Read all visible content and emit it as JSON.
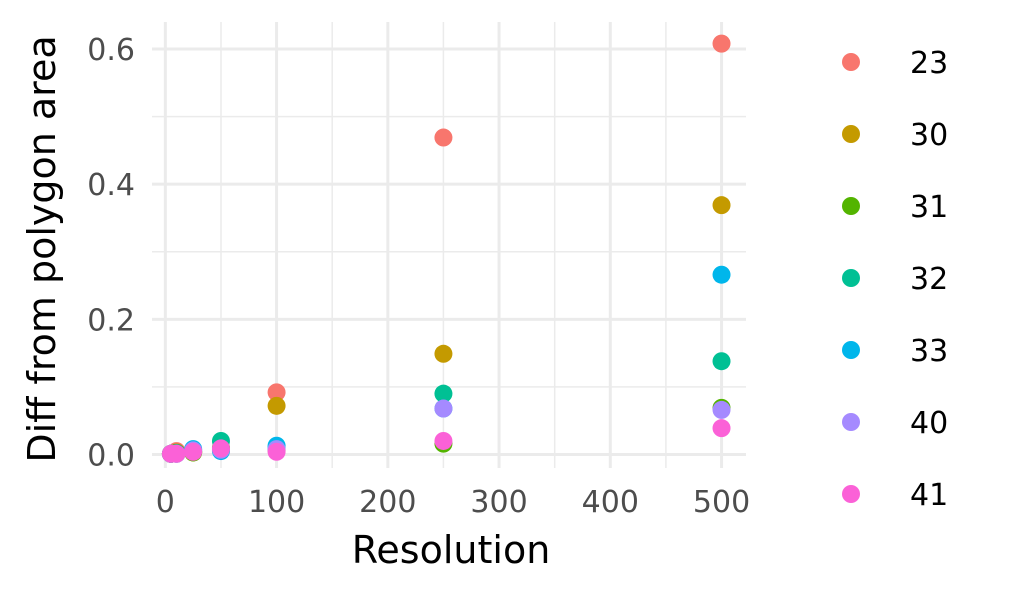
{
  "chart_data": {
    "type": "scatter",
    "xlabel": "Resolution",
    "ylabel": "Diff from polygon area",
    "xlim": [
      -12,
      522
    ],
    "ylim": [
      -0.02,
      0.64
    ],
    "x_ticks": [
      0,
      100,
      200,
      300,
      400,
      500
    ],
    "y_ticks": [
      0.0,
      0.2,
      0.4,
      0.6
    ],
    "x_tick_labels": [
      "0",
      "100",
      "200",
      "300",
      "400",
      "500"
    ],
    "y_tick_labels": [
      "0.0",
      "0.2",
      "0.4",
      "0.6"
    ],
    "grid": true,
    "legend_position": "right",
    "series": [
      {
        "name": "23",
        "color": "#F8766D",
        "points": [
          [
            5,
            0.001
          ],
          [
            10,
            0.005
          ],
          [
            25,
            0.004
          ],
          [
            50,
            0.008
          ],
          [
            100,
            0.092
          ],
          [
            250,
            0.469
          ],
          [
            500,
            0.608
          ]
        ]
      },
      {
        "name": "30",
        "color": "#C49A00",
        "points": [
          [
            5,
            0.001
          ],
          [
            10,
            0.003
          ],
          [
            25,
            0.003
          ],
          [
            50,
            0.006
          ],
          [
            100,
            0.072
          ],
          [
            250,
            0.149
          ],
          [
            500,
            0.369
          ]
        ]
      },
      {
        "name": "31",
        "color": "#53B400",
        "points": [
          [
            5,
            0.001
          ],
          [
            10,
            0.002
          ],
          [
            25,
            0.003
          ],
          [
            50,
            0.01
          ],
          [
            100,
            0.006
          ],
          [
            250,
            0.016
          ],
          [
            500,
            0.069
          ]
        ]
      },
      {
        "name": "32",
        "color": "#00C094",
        "points": [
          [
            5,
            0.001
          ],
          [
            10,
            0.002
          ],
          [
            25,
            0.005
          ],
          [
            50,
            0.02
          ],
          [
            100,
            0.01
          ],
          [
            250,
            0.09
          ],
          [
            500,
            0.138
          ]
        ]
      },
      {
        "name": "33",
        "color": "#00B6EB",
        "points": [
          [
            5,
            0.001
          ],
          [
            10,
            0.001
          ],
          [
            25,
            0.008
          ],
          [
            50,
            0.005
          ],
          [
            100,
            0.013
          ],
          [
            250,
            0.068
          ],
          [
            500,
            0.266
          ]
        ]
      },
      {
        "name": "40",
        "color": "#A58AFF",
        "points": [
          [
            5,
            0.001
          ],
          [
            10,
            0.001
          ],
          [
            25,
            0.006
          ],
          [
            50,
            0.007
          ],
          [
            100,
            0.008
          ],
          [
            250,
            0.068
          ],
          [
            500,
            0.066
          ]
        ]
      },
      {
        "name": "41",
        "color": "#FB61D7",
        "points": [
          [
            5,
            0.001
          ],
          [
            10,
            0.001
          ],
          [
            25,
            0.004
          ],
          [
            50,
            0.009
          ],
          [
            100,
            0.004
          ],
          [
            250,
            0.02
          ],
          [
            500,
            0.039
          ]
        ]
      }
    ]
  }
}
